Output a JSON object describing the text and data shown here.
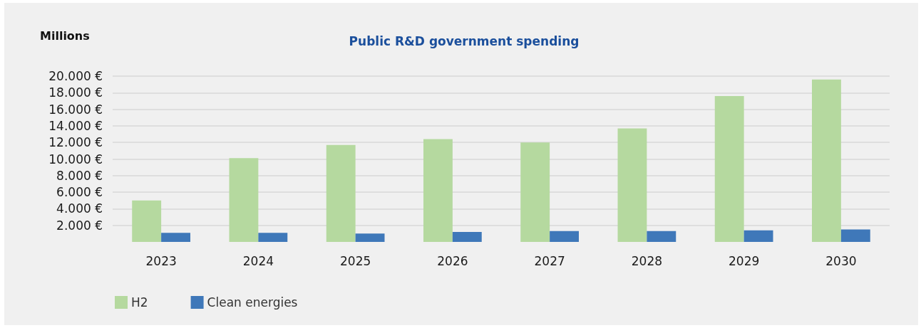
{
  "chart_data": {
    "type": "bar",
    "title": "Public R&D government spending",
    "ylabel": "Millions",
    "categories": [
      "2023",
      "2024",
      "2025",
      "2026",
      "2027",
      "2028",
      "2029",
      "2030"
    ],
    "series": [
      {
        "name": "H2",
        "color": "#b5d99f",
        "values": [
          5000,
          10100,
          11700,
          12400,
          12000,
          13700,
          17600,
          19600
        ]
      },
      {
        "name": "Clean energies",
        "color": "#3f78b9",
        "values": [
          1100,
          1100,
          1000,
          1200,
          1300,
          1300,
          1400,
          1500
        ]
      }
    ],
    "ylim": [
      0,
      20000
    ],
    "yticks": [
      {
        "value": 2000,
        "label": "2.000 €"
      },
      {
        "value": 4000,
        "label": "4.000 €"
      },
      {
        "value": 6000,
        "label": "6.000 €"
      },
      {
        "value": 8000,
        "label": "8.000 €"
      },
      {
        "value": 10000,
        "label": "10.000 €"
      },
      {
        "value": 12000,
        "label": "12.000 €"
      },
      {
        "value": 14000,
        "label": "14.000 €"
      },
      {
        "value": 16000,
        "label": "16.000 €"
      },
      {
        "value": 18000,
        "label": "18.000 €"
      },
      {
        "value": 20000,
        "label": "20.000 €"
      }
    ],
    "grid": "y",
    "legend": "bottom left"
  }
}
